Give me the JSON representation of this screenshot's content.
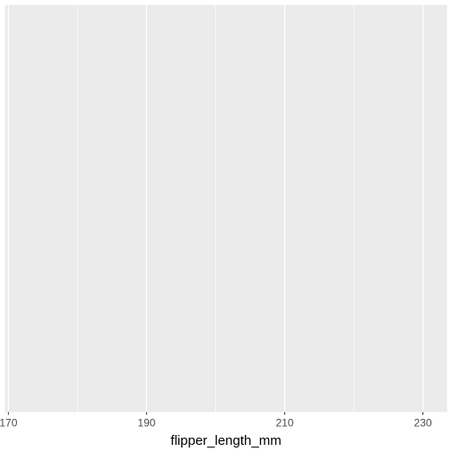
{
  "chart_data": {
    "type": "scatter",
    "title": "",
    "xlabel": "flipper_length_mm",
    "ylabel": "",
    "xlim": [
      169.5,
      233.5
    ],
    "x_ticks": [
      170,
      190,
      210,
      230
    ],
    "x_tick_labels": [
      "170",
      "190",
      "210",
      "230"
    ],
    "x_minor_gridlines": [
      180,
      200,
      220
    ],
    "grid": true,
    "series": [],
    "colors": {
      "panel_background": "#EBEBEB",
      "gridline": "#FFFFFF",
      "tick_label": "#4D4D4D",
      "axis_title": "#000000"
    }
  }
}
